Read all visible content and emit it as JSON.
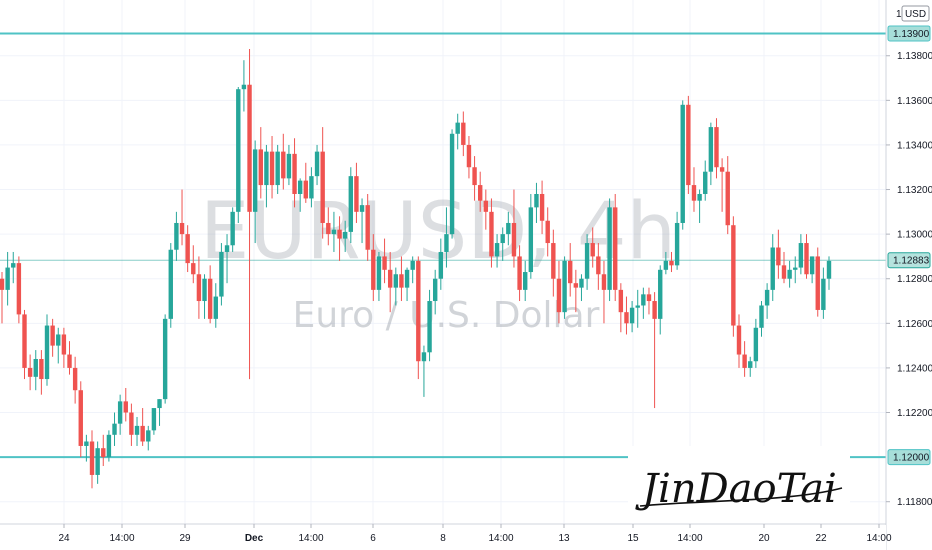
{
  "chart_data": {
    "type": "candlestick",
    "watermark": {
      "symbol": "EURUSD, 4h",
      "name": "Euro / U.S. Dollar"
    },
    "signature": "JinDaoTai",
    "currency": "USD",
    "currency_marker": "1",
    "ylim": [
      1.117,
      1.1405
    ],
    "y_ticks": [
      "1.11800",
      "1.12000",
      "1.12200",
      "1.12400",
      "1.12600",
      "1.12800",
      "1.13000",
      "1.13200",
      "1.13400",
      "1.13600",
      "1.13800",
      "1.13900"
    ],
    "x_ticks": [
      "24",
      "14:00",
      "29",
      "Dec",
      "14:00",
      "6",
      "8",
      "14:00",
      "13",
      "15",
      "14:00",
      "20",
      "22",
      "14:00"
    ],
    "horizontal_lines": [
      {
        "label": "1.13900",
        "value": 1.139
      },
      {
        "label": "1.12000",
        "value": 1.12
      }
    ],
    "last_price": {
      "label": "1.12883",
      "value": 1.12883
    },
    "colors": {
      "up": "#26a69a",
      "down": "#ef5350",
      "level": "#4fc3c5",
      "grid": "#f0f3fa",
      "axis": "#d1d4dc"
    },
    "candles": [
      [
        1.128,
        1.1283,
        1.126,
        1.1275
      ],
      [
        1.1275,
        1.1292,
        1.1268,
        1.1285
      ],
      [
        1.1285,
        1.1292,
        1.1278,
        1.1287
      ],
      [
        1.1287,
        1.129,
        1.126,
        1.1264
      ],
      [
        1.1264,
        1.1266,
        1.1235,
        1.124
      ],
      [
        1.124,
        1.1246,
        1.123,
        1.1236
      ],
      [
        1.1236,
        1.1248,
        1.123,
        1.1244
      ],
      [
        1.1244,
        1.1248,
        1.1228,
        1.1235
      ],
      [
        1.1235,
        1.1264,
        1.1232,
        1.1259
      ],
      [
        1.1259,
        1.1262,
        1.1245,
        1.125
      ],
      [
        1.125,
        1.1258,
        1.1242,
        1.1255
      ],
      [
        1.1255,
        1.1258,
        1.124,
        1.1246
      ],
      [
        1.1246,
        1.1252,
        1.1237,
        1.124
      ],
      [
        1.124,
        1.1245,
        1.1224,
        1.123
      ],
      [
        1.123,
        1.1234,
        1.12,
        1.1205
      ],
      [
        1.1205,
        1.121,
        1.1198,
        1.1207
      ],
      [
        1.1207,
        1.1212,
        1.1186,
        1.1192
      ],
      [
        1.1192,
        1.1207,
        1.1188,
        1.1204
      ],
      [
        1.1204,
        1.121,
        1.1196,
        1.12
      ],
      [
        1.12,
        1.1212,
        1.1198,
        1.121
      ],
      [
        1.121,
        1.122,
        1.1205,
        1.1215
      ],
      [
        1.1215,
        1.1228,
        1.121,
        1.1225
      ],
      [
        1.1225,
        1.1231,
        1.1216,
        1.122
      ],
      [
        1.122,
        1.1224,
        1.1205,
        1.121
      ],
      [
        1.121,
        1.1218,
        1.1205,
        1.1214
      ],
      [
        1.1214,
        1.1222,
        1.1205,
        1.1207
      ],
      [
        1.1207,
        1.1214,
        1.1203,
        1.1212
      ],
      [
        1.1212,
        1.122,
        1.121,
        1.1222
      ],
      [
        1.1222,
        1.1226,
        1.1214,
        1.1226
      ],
      [
        1.1226,
        1.1264,
        1.1224,
        1.1262
      ],
      [
        1.1262,
        1.1296,
        1.1258,
        1.1293
      ],
      [
        1.1293,
        1.131,
        1.1288,
        1.1305
      ],
      [
        1.1305,
        1.132,
        1.1295,
        1.13
      ],
      [
        1.13,
        1.1304,
        1.1283,
        1.1287
      ],
      [
        1.1287,
        1.1295,
        1.1278,
        1.1282
      ],
      [
        1.1282,
        1.129,
        1.1262,
        1.127
      ],
      [
        1.127,
        1.1282,
        1.1262,
        1.128
      ],
      [
        1.128,
        1.1286,
        1.126,
        1.1262
      ],
      [
        1.1262,
        1.1278,
        1.1258,
        1.1272
      ],
      [
        1.1272,
        1.1296,
        1.1268,
        1.1292
      ],
      [
        1.1292,
        1.13,
        1.1278,
        1.1295
      ],
      [
        1.1295,
        1.1312,
        1.1292,
        1.131
      ],
      [
        1.131,
        1.1366,
        1.1305,
        1.1365
      ],
      [
        1.1365,
        1.1378,
        1.1355,
        1.1367
      ],
      [
        1.1367,
        1.1383,
        1.1235,
        1.131
      ],
      [
        1.131,
        1.1342,
        1.1296,
        1.1338
      ],
      [
        1.1338,
        1.1348,
        1.1316,
        1.1322
      ],
      [
        1.1322,
        1.134,
        1.1312,
        1.1337
      ],
      [
        1.1337,
        1.1344,
        1.1316,
        1.1322
      ],
      [
        1.1322,
        1.134,
        1.1318,
        1.1337
      ],
      [
        1.1337,
        1.1345,
        1.132,
        1.1325
      ],
      [
        1.1325,
        1.134,
        1.1322,
        1.1336
      ],
      [
        1.1336,
        1.1343,
        1.1312,
        1.1318
      ],
      [
        1.1318,
        1.1325,
        1.131,
        1.1324
      ],
      [
        1.1324,
        1.1332,
        1.1314,
        1.1316
      ],
      [
        1.1316,
        1.133,
        1.1312,
        1.1326
      ],
      [
        1.1326,
        1.134,
        1.1322,
        1.1337
      ],
      [
        1.1337,
        1.1348,
        1.1298,
        1.1305
      ],
      [
        1.1305,
        1.1312,
        1.1295,
        1.13
      ],
      [
        1.13,
        1.131,
        1.1292,
        1.1302
      ],
      [
        1.1302,
        1.1308,
        1.1288,
        1.1298
      ],
      [
        1.1298,
        1.1306,
        1.1292,
        1.1301
      ],
      [
        1.1301,
        1.133,
        1.1296,
        1.1326
      ],
      [
        1.1326,
        1.1332,
        1.1305,
        1.131
      ],
      [
        1.131,
        1.1316,
        1.1296,
        1.1313
      ],
      [
        1.1313,
        1.1318,
        1.1288,
        1.1293
      ],
      [
        1.1293,
        1.13,
        1.127,
        1.1275
      ],
      [
        1.1275,
        1.1292,
        1.127,
        1.129
      ],
      [
        1.129,
        1.1298,
        1.1278,
        1.1284
      ],
      [
        1.1284,
        1.1292,
        1.1265,
        1.1276
      ],
      [
        1.1276,
        1.1285,
        1.1268,
        1.1282
      ],
      [
        1.1282,
        1.129,
        1.127,
        1.1276
      ],
      [
        1.1276,
        1.1285,
        1.127,
        1.1284
      ],
      [
        1.1284,
        1.129,
        1.1278,
        1.1288
      ],
      [
        1.1288,
        1.129,
        1.1235,
        1.1243
      ],
      [
        1.1243,
        1.125,
        1.1227,
        1.1247
      ],
      [
        1.1247,
        1.1275,
        1.1243,
        1.127
      ],
      [
        1.127,
        1.1284,
        1.1264,
        1.128
      ],
      [
        1.128,
        1.1298,
        1.1275,
        1.1292
      ],
      [
        1.1292,
        1.1312,
        1.1285,
        1.13
      ],
      [
        1.13,
        1.1347,
        1.1298,
        1.1345
      ],
      [
        1.1345,
        1.1354,
        1.1338,
        1.135
      ],
      [
        1.135,
        1.1355,
        1.1335,
        1.134
      ],
      [
        1.134,
        1.1344,
        1.1325,
        1.133
      ],
      [
        1.133,
        1.1335,
        1.1315,
        1.1322
      ],
      [
        1.1322,
        1.1328,
        1.131,
        1.1315
      ],
      [
        1.1315,
        1.132,
        1.1302,
        1.131
      ],
      [
        1.131,
        1.1316,
        1.1285,
        1.129
      ],
      [
        1.129,
        1.13,
        1.1285,
        1.1296
      ],
      [
        1.1296,
        1.1303,
        1.1288,
        1.13
      ],
      [
        1.13,
        1.131,
        1.1295,
        1.1305
      ],
      [
        1.1305,
        1.132,
        1.1285,
        1.129
      ],
      [
        1.129,
        1.1295,
        1.127,
        1.1275
      ],
      [
        1.1275,
        1.1288,
        1.127,
        1.1283
      ],
      [
        1.1283,
        1.1318,
        1.128,
        1.1312
      ],
      [
        1.1312,
        1.1323,
        1.1305,
        1.1318
      ],
      [
        1.1318,
        1.1324,
        1.13,
        1.1306
      ],
      [
        1.1306,
        1.1312,
        1.129,
        1.1296
      ],
      [
        1.1296,
        1.1302,
        1.1272,
        1.128
      ],
      [
        1.128,
        1.1288,
        1.126,
        1.1265
      ],
      [
        1.1265,
        1.129,
        1.1262,
        1.1288
      ],
      [
        1.1288,
        1.1296,
        1.1272,
        1.1278
      ],
      [
        1.1278,
        1.1284,
        1.1265,
        1.1276
      ],
      [
        1.1276,
        1.1282,
        1.127,
        1.128
      ],
      [
        1.128,
        1.13,
        1.1275,
        1.1296
      ],
      [
        1.1296,
        1.1303,
        1.1285,
        1.129
      ],
      [
        1.129,
        1.1296,
        1.1275,
        1.1282
      ],
      [
        1.1282,
        1.1288,
        1.126,
        1.1275
      ],
      [
        1.1275,
        1.1316,
        1.127,
        1.1312
      ],
      [
        1.1312,
        1.1318,
        1.127,
        1.1275
      ],
      [
        1.1275,
        1.1278,
        1.1256,
        1.1265
      ],
      [
        1.1265,
        1.1272,
        1.1255,
        1.126
      ],
      [
        1.126,
        1.127,
        1.1256,
        1.1267
      ],
      [
        1.1267,
        1.1275,
        1.1258,
        1.1268
      ],
      [
        1.1268,
        1.1276,
        1.1262,
        1.1273
      ],
      [
        1.1273,
        1.1276,
        1.1264,
        1.127
      ],
      [
        1.127,
        1.1274,
        1.1222,
        1.1262
      ],
      [
        1.1262,
        1.1286,
        1.1255,
        1.1284
      ],
      [
        1.1284,
        1.1292,
        1.1282,
        1.1288
      ],
      [
        1.1288,
        1.1292,
        1.1283,
        1.1286
      ],
      [
        1.1286,
        1.131,
        1.1284,
        1.1305
      ],
      [
        1.1305,
        1.136,
        1.1302,
        1.1358
      ],
      [
        1.1358,
        1.1362,
        1.1318,
        1.1322
      ],
      [
        1.1322,
        1.133,
        1.131,
        1.1315
      ],
      [
        1.1315,
        1.132,
        1.1305,
        1.1318
      ],
      [
        1.1318,
        1.1333,
        1.1315,
        1.1328
      ],
      [
        1.1328,
        1.135,
        1.1322,
        1.1348
      ],
      [
        1.1348,
        1.1352,
        1.1325,
        1.133
      ],
      [
        1.133,
        1.1334,
        1.131,
        1.1328
      ],
      [
        1.1328,
        1.1335,
        1.13,
        1.1304
      ],
      [
        1.1304,
        1.1308,
        1.1254,
        1.1259
      ],
      [
        1.1259,
        1.1264,
        1.124,
        1.1246
      ],
      [
        1.1246,
        1.1252,
        1.1236,
        1.124
      ],
      [
        1.124,
        1.1245,
        1.1236,
        1.1243
      ],
      [
        1.1243,
        1.1262,
        1.124,
        1.1258
      ],
      [
        1.1258,
        1.127,
        1.1254,
        1.1268
      ],
      [
        1.1268,
        1.1278,
        1.1262,
        1.1275
      ],
      [
        1.1275,
        1.13,
        1.127,
        1.1294
      ],
      [
        1.1294,
        1.1302,
        1.128,
        1.1286
      ],
      [
        1.1286,
        1.1292,
        1.1278,
        1.128
      ],
      [
        1.128,
        1.1288,
        1.1276,
        1.1284
      ],
      [
        1.1284,
        1.129,
        1.1278,
        1.1285
      ],
      [
        1.1285,
        1.13,
        1.1282,
        1.1296
      ],
      [
        1.1296,
        1.13,
        1.128,
        1.1282
      ],
      [
        1.1282,
        1.129,
        1.1278,
        1.129
      ],
      [
        1.129,
        1.1294,
        1.1263,
        1.1266
      ],
      [
        1.1266,
        1.1285,
        1.1262,
        1.128
      ],
      [
        1.128,
        1.129,
        1.1275,
        1.1288
      ]
    ]
  }
}
